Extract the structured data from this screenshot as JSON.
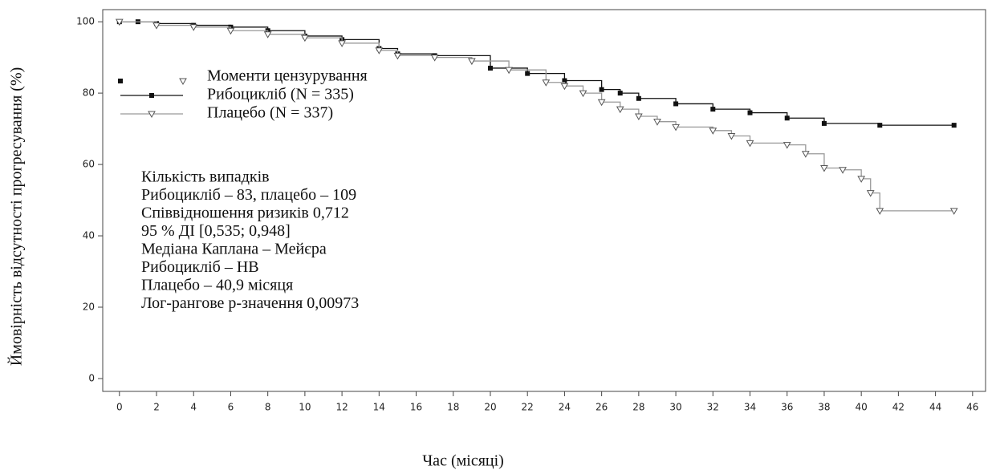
{
  "chart_data": {
    "type": "line",
    "step": true,
    "xlabel": "Час (місяці)",
    "ylabel": "Ймовірність відсутності прогресування (%)",
    "xlim": [
      -0.9,
      46.7
    ],
    "ylim": [
      -3.6,
      103.4
    ],
    "xticks": [
      0,
      2,
      4,
      6,
      8,
      10,
      12,
      14,
      16,
      18,
      20,
      22,
      24,
      26,
      28,
      30,
      32,
      34,
      36,
      38,
      40,
      42,
      44,
      46
    ],
    "yticks": [
      0,
      20,
      40,
      60,
      80,
      100
    ],
    "legend": "upper left",
    "legend_title": "Моменти цензурування",
    "series": [
      {
        "name": "Рибоцикліб (N = 335)",
        "color": "#111111",
        "marker": "square",
        "x": [
          0,
          1,
          2,
          4,
          6,
          8,
          10,
          12,
          14,
          15,
          17,
          20,
          22,
          24,
          26,
          27,
          28,
          30,
          32,
          34,
          36,
          38,
          41,
          45
        ],
        "values": [
          100,
          100,
          99.5,
          99,
          98.5,
          97.5,
          96,
          95,
          92.5,
          91,
          90.5,
          87,
          85.5,
          83.5,
          81,
          80,
          78.5,
          77,
          75.5,
          74.5,
          73,
          71.5,
          71,
          71
        ]
      },
      {
        "name": "Плацебо (N = 337)",
        "color": "#999999",
        "marker": "triangle",
        "x": [
          0,
          2,
          4,
          6,
          8,
          10,
          12,
          14,
          15,
          17,
          19,
          21,
          23,
          24,
          25,
          26,
          27,
          28,
          29,
          30,
          32,
          33,
          34,
          36,
          37,
          38,
          39,
          40,
          40.5,
          41,
          45
        ],
        "values": [
          100,
          99,
          98.5,
          97.5,
          96.5,
          95.5,
          94,
          92,
          90.5,
          90,
          89,
          86.5,
          83,
          82,
          80,
          77.5,
          75.5,
          73.5,
          72,
          70.5,
          69.5,
          68,
          66,
          65.5,
          63,
          59,
          58.5,
          56,
          52,
          47,
          47
        ]
      }
    ],
    "annotations": [
      "Кількість випадків",
      "Рибоцикліб – 83, плацебо – 109",
      "Співвідношення ризиків 0,712",
      "95 % ДІ [0,535; 0,948]",
      "Медіана Каплана – Мейєра",
      "Рибоцикліб – НВ",
      "Плацебо – 40,9 місяця",
      "Лог-рангове p-значення 0,00973"
    ]
  }
}
